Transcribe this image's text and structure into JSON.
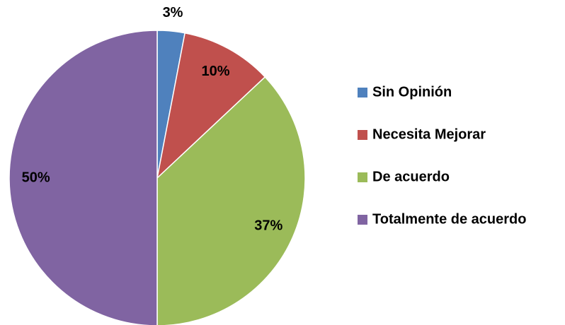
{
  "chart_data": {
    "type": "pie",
    "categories": [
      "Sin Opinión",
      "Necesita Mejorar",
      "De acuerdo",
      "Totalmente de acuerdo"
    ],
    "values": [
      3,
      10,
      37,
      50
    ],
    "value_labels": [
      "3%",
      "10%",
      "37%",
      "50%"
    ],
    "colors": [
      "#4f81bd",
      "#c0504d",
      "#9bbb59",
      "#8064a2"
    ],
    "legend": "right"
  }
}
